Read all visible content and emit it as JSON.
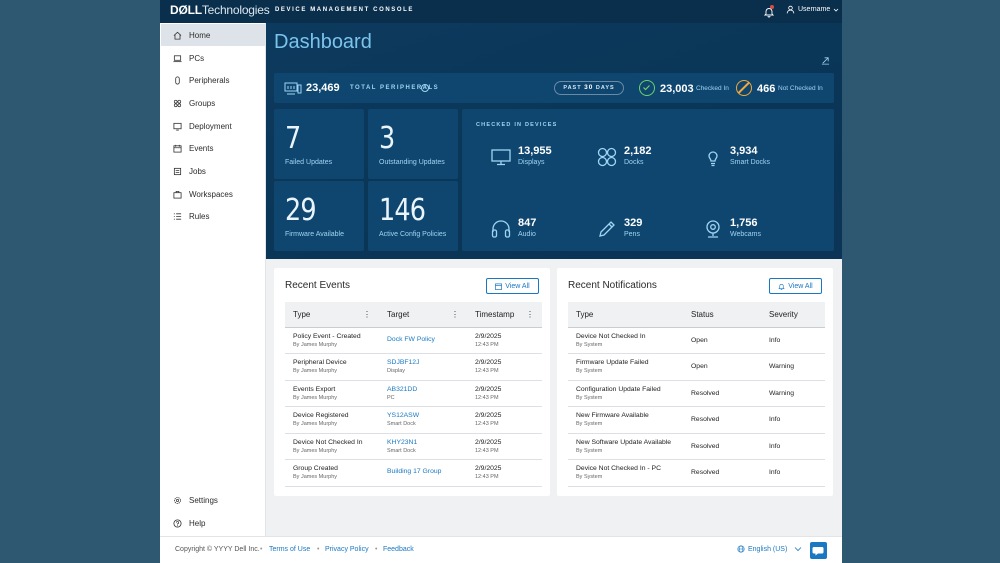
{
  "brand": {
    "logo_bold": "DØLL",
    "logo_rest": "Technologies",
    "console_title": "DEVICE MANAGEMENT CONSOLE"
  },
  "header": {
    "username": "Username"
  },
  "sidebar": {
    "items": [
      {
        "label": "Home",
        "icon": "home-icon",
        "active": true
      },
      {
        "label": "PCs",
        "icon": "laptop-icon"
      },
      {
        "label": "Peripherals",
        "icon": "mouse-icon"
      },
      {
        "label": "Groups",
        "icon": "groups-icon"
      },
      {
        "label": "Deployment",
        "icon": "deployment-icon"
      },
      {
        "label": "Events",
        "icon": "calendar-icon"
      },
      {
        "label": "Jobs",
        "icon": "jobs-icon"
      },
      {
        "label": "Workspaces",
        "icon": "briefcase-icon"
      },
      {
        "label": "Rules",
        "icon": "list-icon"
      }
    ],
    "bottom": [
      {
        "label": "Settings",
        "icon": "gear-icon"
      },
      {
        "label": "Help",
        "icon": "help-icon"
      }
    ]
  },
  "dashboard": {
    "title": "Dashboard",
    "total_peripherals": "23,469",
    "total_peripherals_label": "TOTAL PERIPHERALS",
    "period_prefix": "PAST",
    "period_number": "30",
    "period_suffix": "DAYS",
    "checked_in": "23,003",
    "checked_in_label": "Checked In",
    "not_checked_in": "466",
    "not_checked_in_label": "Not Checked In",
    "stats": [
      {
        "value": "7",
        "label": "Failed Updates"
      },
      {
        "value": "3",
        "label": "Outstanding Updates"
      },
      {
        "value": "29",
        "label": "Firmware Available"
      },
      {
        "value": "146",
        "label": "Active Config Policies"
      }
    ],
    "devices_heading": "CHECKED IN DEVICES",
    "devices": [
      {
        "value": "13,955",
        "label": "Displays",
        "icon": "monitor-icon"
      },
      {
        "value": "2,182",
        "label": "Docks",
        "icon": "dock-icon"
      },
      {
        "value": "3,934",
        "label": "Smart Docks",
        "icon": "lightbulb-icon"
      },
      {
        "value": "847",
        "label": "Audio",
        "icon": "headset-icon"
      },
      {
        "value": "329",
        "label": "Pens",
        "icon": "pen-icon"
      },
      {
        "value": "1,756",
        "label": "Webcams",
        "icon": "webcam-icon"
      }
    ]
  },
  "events": {
    "title": "Recent Events",
    "view_all": "View All",
    "columns": [
      "Type",
      "Target",
      "Timestamp"
    ],
    "rows": [
      {
        "type": "Policy Event - Created",
        "by": "By James Murphy",
        "target": "Dock FW Policy",
        "target_sub": "",
        "date": "2/9/2025",
        "time": "12:43 PM"
      },
      {
        "type": "Peripheral Device",
        "by": "By James Murphy",
        "target": "SDJBF12J",
        "target_sub": "Display",
        "date": "2/9/2025",
        "time": "12:43 PM"
      },
      {
        "type": "Events Export",
        "by": "By James Murphy",
        "target": "AB321DD",
        "target_sub": "PC",
        "date": "2/9/2025",
        "time": "12:43 PM"
      },
      {
        "type": "Device Registered",
        "by": "By James Murphy",
        "target": "YS12ASW",
        "target_sub": "Smart Dock",
        "date": "2/9/2025",
        "time": "12:43 PM"
      },
      {
        "type": "Device Not Checked In",
        "by": "By James Murphy",
        "target": "KHY23N1",
        "target_sub": "Smart Dock",
        "date": "2/9/2025",
        "time": "12:43 PM"
      },
      {
        "type": "Group Created",
        "by": "By James Murphy",
        "target": "Building 17 Group",
        "target_sub": "",
        "date": "2/9/2025",
        "time": "12:43 PM"
      }
    ]
  },
  "notifications": {
    "title": "Recent Notifications",
    "view_all": "View All",
    "columns": [
      "Type",
      "Status",
      "Severity"
    ],
    "rows": [
      {
        "type": "Device Not Checked In",
        "by": "By System",
        "status": "Open",
        "severity": "Info"
      },
      {
        "type": "Firmware Update Failed",
        "by": "By System",
        "status": "Open",
        "severity": "Warning"
      },
      {
        "type": "Configuration Update Failed",
        "by": "By System",
        "status": "Resolved",
        "severity": "Warning"
      },
      {
        "type": "New Firmware Available",
        "by": "By System",
        "status": "Resolved",
        "severity": "Info"
      },
      {
        "type": "New Software Update Available",
        "by": "By System",
        "status": "Resolved",
        "severity": "Info"
      },
      {
        "type": "Device Not Checked In - PC",
        "by": "By System",
        "status": "Resolved",
        "severity": "Info"
      }
    ]
  },
  "footer": {
    "copyright": "Copyright © YYYY Dell Inc.",
    "links": [
      "Terms of Use",
      "Privacy Policy",
      "Feedback"
    ],
    "language": "English (US)"
  },
  "colors": {
    "accent": "#1a78c2",
    "hero": "#0c3a5e",
    "tile": "#0f4670",
    "success": "#6fcf6a",
    "warning": "#f2a93a"
  }
}
